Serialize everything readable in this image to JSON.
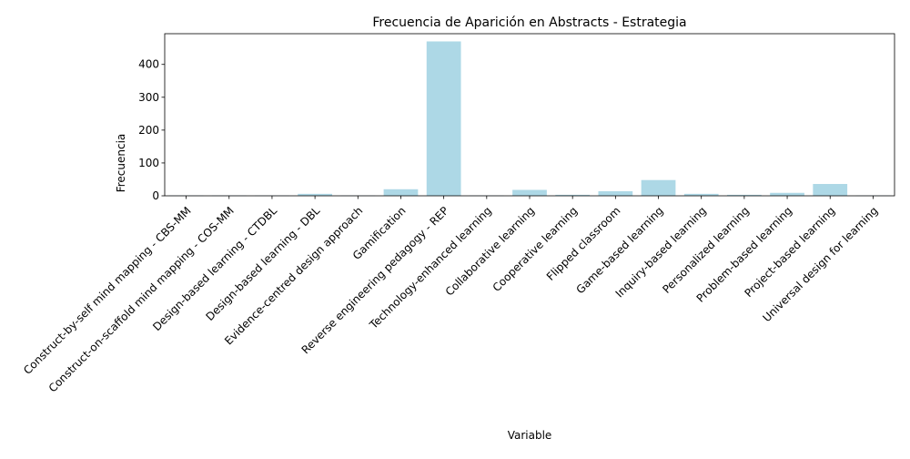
{
  "chart_data": {
    "type": "bar",
    "title": "Frecuencia de Aparición en Abstracts - Estrategia",
    "xlabel": "Variable",
    "ylabel": "Frecuencia",
    "categories": [
      "Construct-by-self mind mapping - CBS-MM",
      "Construct-on-scaffold mind mapping - COS-MM",
      "Design-based learning - CTDBL",
      "Design-based learning - DBL",
      "Evidence-centred design approach",
      "Gamification",
      "Reverse engineering pedagogy - REP",
      "Technology-enhanced learning",
      "Collaborative learning",
      "Cooperative learning",
      "Flipped classroom",
      "Game-based learning",
      "Inquiry-based learning",
      "Personalized learning",
      "Problem-based learning",
      "Project-based learning",
      "Universal design for learning"
    ],
    "values": [
      1,
      1,
      1,
      6,
      1,
      20,
      470,
      1,
      18,
      3,
      14,
      48,
      6,
      3,
      9,
      36,
      1
    ],
    "yticks": [
      0,
      100,
      200,
      300,
      400
    ],
    "ylim": [
      0,
      493.5
    ],
    "bar_color": "#add8e6",
    "grid": false,
    "legend": "none"
  }
}
